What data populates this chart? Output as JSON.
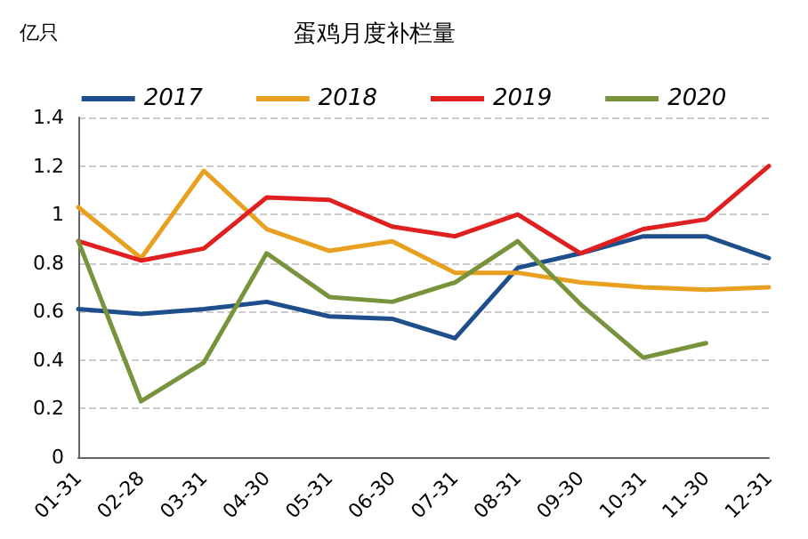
{
  "chart_data": {
    "type": "line",
    "title": "蛋鸡月度补栏量",
    "ylabel": "亿只",
    "categories": [
      "01-31",
      "02-28",
      "03-31",
      "04-30",
      "05-31",
      "06-30",
      "07-31",
      "08-31",
      "09-30",
      "10-31",
      "11-30",
      "12-31"
    ],
    "series": [
      {
        "name": "2017",
        "color": "#1f4e8c",
        "values": [
          0.61,
          0.59,
          0.61,
          0.64,
          0.58,
          0.57,
          0.49,
          0.78,
          0.84,
          0.91,
          0.91,
          0.82
        ]
      },
      {
        "name": "2018",
        "color": "#e8a020",
        "values": [
          1.03,
          0.82,
          1.18,
          0.94,
          0.85,
          0.89,
          0.76,
          0.76,
          0.72,
          0.7,
          0.69,
          0.7
        ]
      },
      {
        "name": "2019",
        "color": "#e02020",
        "values": [
          0.89,
          0.81,
          0.86,
          1.07,
          1.06,
          0.95,
          0.91,
          1.0,
          0.84,
          0.94,
          0.98,
          1.2
        ]
      },
      {
        "name": "2020",
        "color": "#77933c",
        "values": [
          0.89,
          0.23,
          0.39,
          0.84,
          0.66,
          0.64,
          0.72,
          0.89,
          0.63,
          0.41,
          0.47,
          null
        ]
      }
    ],
    "ylim": [
      0,
      1.4
    ],
    "yticks": [
      0,
      0.2,
      0.4,
      0.6,
      0.8,
      1,
      1.2,
      1.4
    ],
    "grid": "y",
    "legend": "top",
    "marker": "none",
    "line_style": "solid"
  }
}
